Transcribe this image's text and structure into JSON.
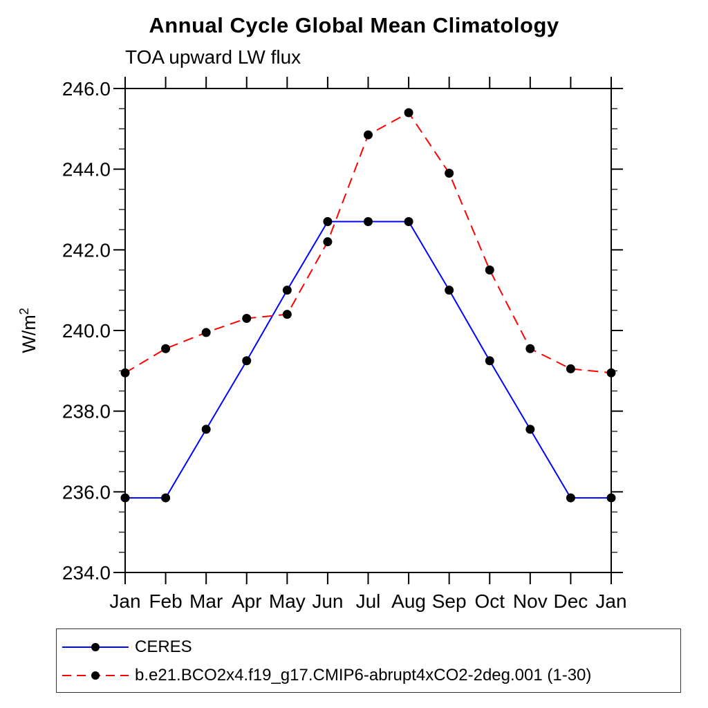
{
  "chart_data": {
    "type": "line",
    "title": "Annual Cycle Global Mean Climatology",
    "subtitle": "TOA upward LW flux",
    "ylabel": "W/m",
    "ylabel_sup": "2",
    "categories": [
      "Jan",
      "Feb",
      "Mar",
      "Apr",
      "May",
      "Jun",
      "Jul",
      "Aug",
      "Sep",
      "Oct",
      "Nov",
      "Dec",
      "Jan"
    ],
    "ylim": [
      234.0,
      246.0
    ],
    "ytick_step": 2.0,
    "ytick_minor_step": 0.5,
    "yticks": {
      "values": [
        234.0,
        236.0,
        238.0,
        240.0,
        242.0,
        244.0,
        246.0
      ],
      "labels": [
        "234.0",
        "236.0",
        "238.0",
        "240.0",
        "242.0",
        "244.0",
        "246.0"
      ]
    },
    "grid": false,
    "legend_position": "bottom-left",
    "marker": "filled-circle",
    "series": [
      {
        "name": "CERES",
        "color": "#0000ff",
        "line_style": "solid",
        "marker_color": "#000000",
        "values": [
          235.85,
          235.85,
          237.55,
          239.25,
          241.0,
          242.7,
          242.7,
          242.7,
          241.0,
          239.25,
          237.55,
          235.85,
          235.85
        ]
      },
      {
        "name": "b.e21.BCO2x4.f19_g17.CMIP6-abrupt4xCO2-2deg.001 (1-30)",
        "color": "#ff0000",
        "line_style": "dashed",
        "marker_color": "#000000",
        "values": [
          238.95,
          239.55,
          239.95,
          240.3,
          240.4,
          242.2,
          244.85,
          245.4,
          243.9,
          241.5,
          239.55,
          239.05,
          238.95
        ]
      }
    ]
  }
}
